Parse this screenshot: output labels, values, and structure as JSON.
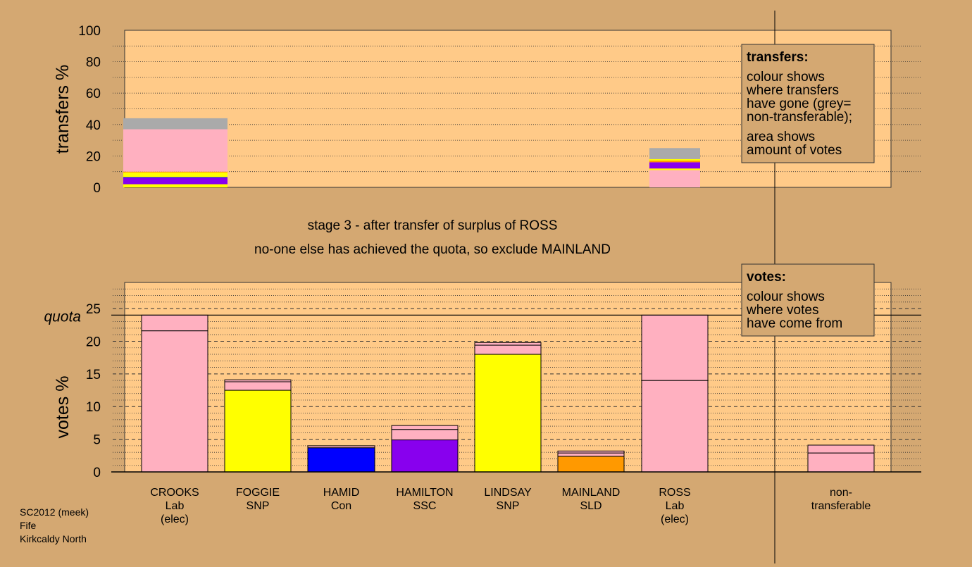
{
  "colors": {
    "background": "#d4a872",
    "plot_bg": "#ffca88",
    "grid": "#333333",
    "party": {
      "Lab": "#ffb0c0",
      "SNP": "#ffff00",
      "Con": "#0000ff",
      "SSC": "#8800ee",
      "SLD": "#ff9900",
      "NT": "#aaaaaa"
    }
  },
  "titles": {
    "line1": "stage 3 - after transfer of surplus of ROSS",
    "line2": "no-one else has achieved the quota, so exclude MAINLAND"
  },
  "footer": {
    "line1": "SC2012 (meek)",
    "line2": "Fife",
    "line3": "Kirkcaldy North"
  },
  "chart_data": [
    {
      "type": "bar",
      "stacked": true,
      "ylabel": "transfers %",
      "ylim": [
        0,
        100
      ],
      "yticks": [
        0,
        20,
        40,
        60,
        80,
        100
      ],
      "columns": [
        {
          "position": "CROOKS",
          "segments": [
            {
              "party": "SNP",
              "value": 2
            },
            {
              "party": "SSC",
              "value": 4
            },
            {
              "party": "Con",
              "value": 0.5
            },
            {
              "party": "SNP",
              "value": 3
            },
            {
              "party": "SLD",
              "value": 0.5
            },
            {
              "party": "Lab",
              "value": 27
            },
            {
              "party": "NT",
              "value": 7
            }
          ]
        },
        {
          "position": "ROSS",
          "segments": [
            {
              "party": "Lab",
              "value": 11
            },
            {
              "party": "SNP",
              "value": 1
            },
            {
              "party": "SSC",
              "value": 4
            },
            {
              "party": "SLD",
              "value": 1
            },
            {
              "party": "SNP",
              "value": 1
            },
            {
              "party": "NT",
              "value": 7
            }
          ]
        }
      ],
      "legend": {
        "title": "transfers:",
        "lines": [
          "colour shows",
          "where transfers",
          "have gone (grey=",
          "non-transferable);",
          "area shows",
          "amount of votes"
        ]
      }
    },
    {
      "type": "bar",
      "stacked": true,
      "ylabel": "votes %",
      "ylim": [
        0,
        29
      ],
      "yticks": [
        0,
        5,
        10,
        15,
        20,
        25
      ],
      "quota": 24,
      "quota_label": "quota",
      "categories": [
        "CROOKS Lab (elec)",
        "FOGGIE SNP",
        "HAMID Con",
        "HAMILTON SSC",
        "LINDSAY SNP",
        "MAINLAND SLD",
        "ROSS Lab (elec)",
        "non-transferable"
      ],
      "bars": [
        {
          "name": "CROOKS",
          "party": "Lab",
          "label_lines": [
            "CROOKS",
            "Lab",
            "(elec)"
          ],
          "segments": [
            {
              "party": "Lab",
              "value": 21.6
            },
            {
              "party": "Lab",
              "value": 2.4
            }
          ]
        },
        {
          "name": "FOGGIE",
          "party": "SNP",
          "label_lines": [
            "FOGGIE",
            "SNP"
          ],
          "segments": [
            {
              "party": "SNP",
              "value": 12.5
            },
            {
              "party": "Lab",
              "value": 1.3
            },
            {
              "party": "Lab",
              "value": 0.3
            }
          ]
        },
        {
          "name": "HAMID",
          "party": "Con",
          "label_lines": [
            "HAMID",
            "Con"
          ],
          "segments": [
            {
              "party": "Con",
              "value": 3.7
            },
            {
              "party": "Lab",
              "value": 0.3
            }
          ]
        },
        {
          "name": "HAMILTON",
          "party": "SSC",
          "label_lines": [
            "HAMILTON",
            "SSC"
          ],
          "segments": [
            {
              "party": "SSC",
              "value": 4.9
            },
            {
              "party": "Lab",
              "value": 1.6
            },
            {
              "party": "Lab",
              "value": 0.6
            }
          ]
        },
        {
          "name": "LINDSAY",
          "party": "SNP",
          "label_lines": [
            "LINDSAY",
            "SNP"
          ],
          "segments": [
            {
              "party": "SNP",
              "value": 18
            },
            {
              "party": "Lab",
              "value": 1.4
            },
            {
              "party": "Lab",
              "value": 0.4
            }
          ]
        },
        {
          "name": "MAINLAND",
          "party": "SLD",
          "label_lines": [
            "MAINLAND",
            "SLD"
          ],
          "segments": [
            {
              "party": "SLD",
              "value": 2.4
            },
            {
              "party": "Lab",
              "value": 0.5
            },
            {
              "party": "Lab",
              "value": 0.3
            }
          ]
        },
        {
          "name": "ROSS",
          "party": "Lab",
          "label_lines": [
            "ROSS",
            "Lab",
            "(elec)"
          ],
          "segments": [
            {
              "party": "Lab",
              "value": 14
            },
            {
              "party": "Lab",
              "value": 10
            }
          ]
        },
        {
          "name": "non-transferable",
          "party": "Lab",
          "label_lines": [
            "non-",
            "transferable"
          ],
          "segments": [
            {
              "party": "Lab",
              "value": 2.9
            },
            {
              "party": "Lab",
              "value": 1.2
            }
          ]
        }
      ],
      "legend": {
        "title": "votes:",
        "lines": [
          "colour shows",
          "where votes",
          "have come from"
        ]
      }
    }
  ]
}
